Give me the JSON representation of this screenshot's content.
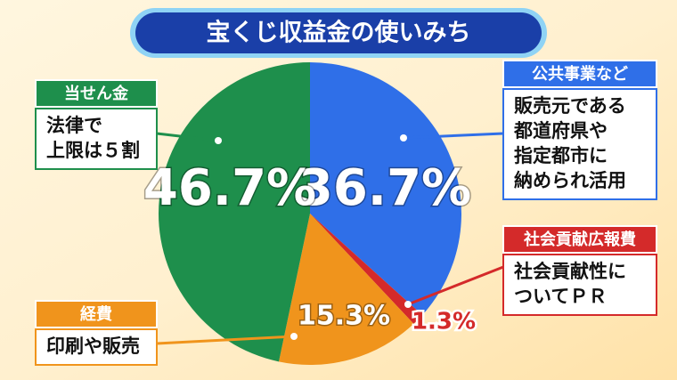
{
  "chart_data": {
    "type": "pie",
    "title": "宝くじ収益金の使いみち",
    "categories": [
      "公共事業など",
      "社会貢献広報費",
      "経費",
      "当せん金"
    ],
    "values": [
      36.7,
      1.3,
      15.3,
      46.7
    ],
    "value_labels": [
      "36.7%",
      "1.3%",
      "15.3%",
      "46.7%"
    ],
    "colors": [
      "#2f6fe8",
      "#d42a2a",
      "#f0941c",
      "#1e8f4c"
    ],
    "descriptions": [
      [
        "販売元である",
        "都道府県や",
        "指定都市に",
        "納められ活用"
      ],
      [
        "社会貢献性に",
        "ついてＰＲ"
      ],
      [
        "印刷や販売"
      ],
      [
        "法律で",
        "上限は５割"
      ]
    ]
  }
}
